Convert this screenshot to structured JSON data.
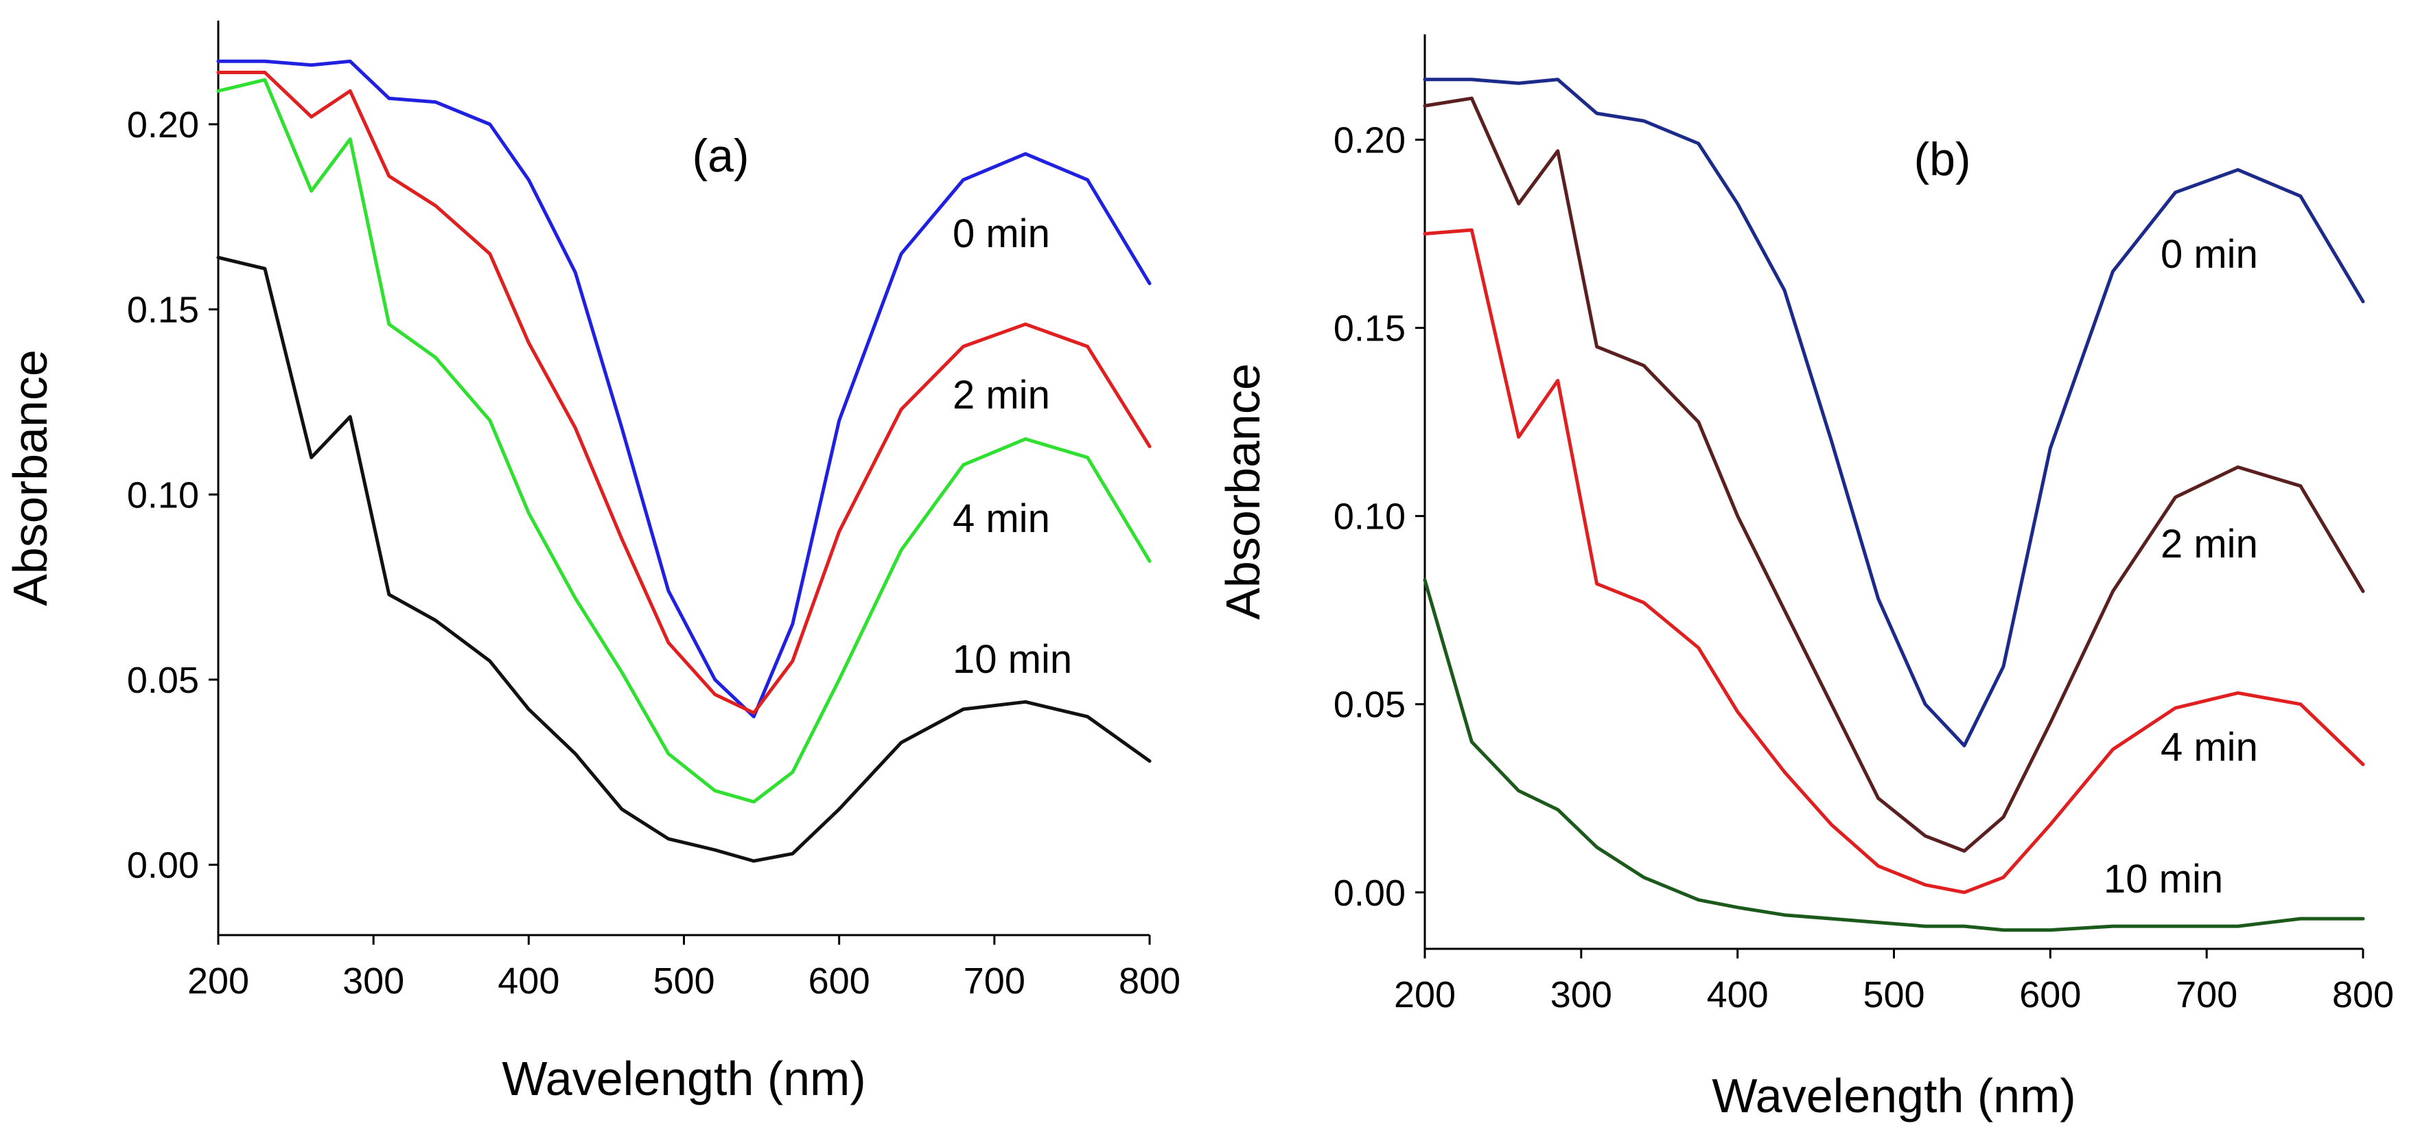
{
  "chart_data": [
    {
      "type": "line",
      "title": "(a)",
      "xlabel": "Wavelength (nm)",
      "ylabel": "Absorbance",
      "xlim": [
        200,
        800
      ],
      "ylim": [
        -0.019,
        0.228
      ],
      "xticks": [
        "200",
        "300",
        "400",
        "500",
        "600",
        "700",
        "800"
      ],
      "yticks": [
        "0.00",
        "0.05",
        "0.10",
        "0.15",
        "0.20"
      ],
      "x": [
        200,
        230,
        260,
        285,
        310,
        340,
        375,
        400,
        430,
        460,
        490,
        520,
        545,
        570,
        600,
        640,
        680,
        720,
        760,
        800
      ],
      "series": [
        {
          "name": "0 min",
          "label": "0 min",
          "color": "#2020e0",
          "values": [
            0.217,
            0.217,
            0.216,
            0.217,
            0.207,
            0.206,
            0.2,
            0.185,
            0.16,
            0.118,
            0.074,
            0.05,
            0.04,
            0.065,
            0.12,
            0.165,
            0.185,
            0.192,
            0.185,
            0.157
          ]
        },
        {
          "name": "2 min",
          "label": "2 min",
          "color": "#e02020",
          "values": [
            0.214,
            0.214,
            0.202,
            0.209,
            0.186,
            0.178,
            0.165,
            0.141,
            0.118,
            0.088,
            0.06,
            0.046,
            0.041,
            0.055,
            0.09,
            0.123,
            0.14,
            0.146,
            0.14,
            0.113
          ]
        },
        {
          "name": "4 min",
          "label": "4 min",
          "color": "#30e030",
          "values": [
            0.209,
            0.212,
            0.182,
            0.196,
            0.146,
            0.137,
            0.12,
            0.095,
            0.072,
            0.052,
            0.03,
            0.02,
            0.017,
            0.025,
            0.05,
            0.085,
            0.108,
            0.115,
            0.11,
            0.082
          ]
        },
        {
          "name": "10 min",
          "label": "10 min",
          "color": "#111111",
          "values": [
            0.164,
            0.161,
            0.11,
            0.121,
            0.073,
            0.066,
            0.055,
            0.042,
            0.03,
            0.015,
            0.007,
            0.004,
            0.001,
            0.003,
            0.015,
            0.033,
            0.042,
            0.044,
            0.04,
            0.028
          ]
        }
      ]
    },
    {
      "type": "line",
      "title": "(b)",
      "xlabel": "Wavelength (nm)",
      "ylabel": "Absorbance",
      "xlim": [
        200,
        800
      ],
      "ylim": [
        -0.015,
        0.228
      ],
      "xticks": [
        "200",
        "300",
        "400",
        "500",
        "600",
        "700",
        "800"
      ],
      "yticks": [
        "0.00",
        "0.05",
        "0.10",
        "0.15",
        "0.20"
      ],
      "x": [
        200,
        230,
        260,
        285,
        310,
        340,
        375,
        400,
        430,
        460,
        490,
        520,
        545,
        570,
        600,
        640,
        680,
        720,
        760,
        800
      ],
      "series": [
        {
          "name": "0 min",
          "label": "0 min",
          "color": "#1c2a8a",
          "values": [
            0.216,
            0.216,
            0.215,
            0.216,
            0.207,
            0.205,
            0.199,
            0.183,
            0.16,
            0.12,
            0.078,
            0.05,
            0.039,
            0.06,
            0.118,
            0.165,
            0.186,
            0.192,
            0.185,
            0.157
          ]
        },
        {
          "name": "2 min",
          "label": "2 min",
          "color": "#5a1f1f",
          "values": [
            0.209,
            0.211,
            0.183,
            0.197,
            0.145,
            0.14,
            0.125,
            0.1,
            0.075,
            0.05,
            0.025,
            0.015,
            0.011,
            0.02,
            0.045,
            0.08,
            0.105,
            0.113,
            0.108,
            0.08
          ]
        },
        {
          "name": "4 min",
          "label": "4 min",
          "color": "#e02020",
          "values": [
            0.175,
            0.176,
            0.121,
            0.136,
            0.082,
            0.077,
            0.065,
            0.048,
            0.032,
            0.018,
            0.007,
            0.002,
            0.0,
            0.004,
            0.018,
            0.038,
            0.049,
            0.053,
            0.05,
            0.034
          ]
        },
        {
          "name": "10 min",
          "label": "10 min",
          "color": "#1c5a1c",
          "values": [
            0.083,
            0.04,
            0.027,
            0.022,
            0.012,
            0.004,
            -0.002,
            -0.004,
            -0.006,
            -0.007,
            -0.008,
            -0.009,
            -0.009,
            -0.01,
            -0.01,
            -0.009,
            -0.009,
            -0.009,
            -0.007,
            -0.007
          ]
        }
      ]
    }
  ]
}
